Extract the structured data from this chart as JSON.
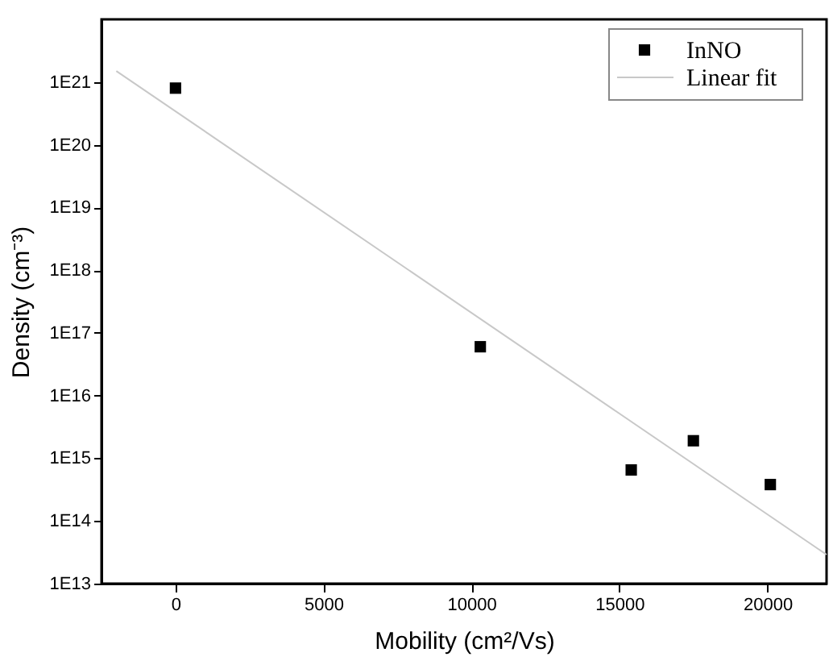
{
  "chart_data": {
    "type": "scatter",
    "xlabel": "Mobility (cm²/Vs)",
    "ylabel": "Density (cm⁻³)",
    "log": "y",
    "grid": false,
    "legend": "top right",
    "xlim": [
      -2500,
      22000
    ],
    "xticks": [
      0,
      5000,
      10000,
      15000,
      20000
    ],
    "ylim": [
      10000000000000.0,
      1e+22
    ],
    "yticks": [
      {
        "value": 10000000000000.0,
        "label": "1E13"
      },
      {
        "value": 100000000000000.0,
        "label": "1E14"
      },
      {
        "value": 1000000000000000.0,
        "label": "1E15"
      },
      {
        "value": 1e+16,
        "label": "1E16"
      },
      {
        "value": 1e+17,
        "label": "1E17"
      },
      {
        "value": 1e+18,
        "label": "1E18"
      },
      {
        "value": 1e+19,
        "label": "1E19"
      },
      {
        "value": 1e+20,
        "label": "1E20"
      },
      {
        "value": 1e+21,
        "label": "1E21"
      }
    ],
    "series": [
      {
        "name": "InNO",
        "marker": "square",
        "color": "#000000",
        "x": [
          0,
          10300,
          15400,
          17500,
          20100
        ],
        "values": [
          8e+20,
          6e+16,
          650000000000000.0,
          1900000000000000.0,
          380000000000000.0
        ]
      },
      {
        "name": "Linear fit",
        "type": "line",
        "color": "#c8c8c8",
        "line_style": "solid",
        "x": [
          -2000,
          22000
        ],
        "values": [
          1.5e+21,
          29000000000000.0
        ]
      }
    ]
  }
}
